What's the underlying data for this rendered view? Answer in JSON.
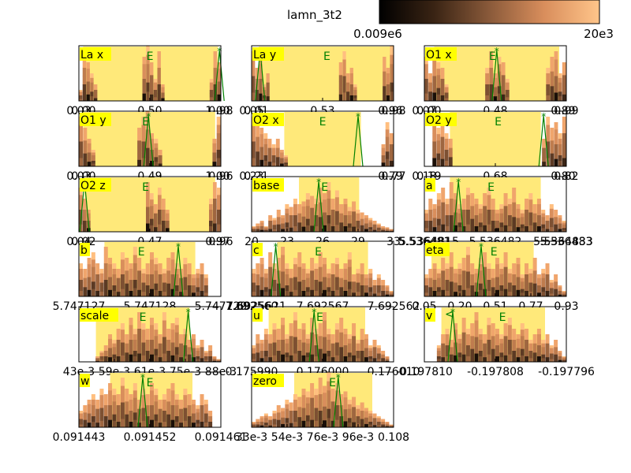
{
  "figure": {
    "title": "lamn_3t2",
    "colorbar": {
      "min_label": "0.009e6",
      "max_label": "20e3"
    }
  },
  "colors": {
    "band": "#ffe97a",
    "line": "#008000",
    "label_bg": "#ffff00",
    "frame": "#000000"
  },
  "chart_data": [
    {
      "name": "La x",
      "type": "bar",
      "ticks": [
        "0.03",
        "0.50",
        "0.98"
      ],
      "extra_ticks": [
        "0.00",
        "1.00"
      ],
      "band": [
        0.03,
        0.98
      ],
      "E": 0.5,
      "star": 0.99,
      "heights": [
        0.2,
        0.9,
        0.7,
        0.5,
        0.3,
        0,
        0,
        0,
        0,
        0,
        0,
        0,
        0,
        0,
        0,
        0,
        0,
        0.8,
        1.0,
        0.7,
        0.4,
        0.9,
        0.3,
        0,
        0,
        0,
        0,
        0,
        0,
        0,
        0,
        0,
        0,
        0,
        0,
        0.4,
        0.9,
        0.7
      ]
    },
    {
      "name": "La y",
      "type": "bar",
      "ticks": [
        "0.05",
        "0.53",
        "0.98"
      ],
      "extra_ticks": [
        "0.01",
        "0.96"
      ],
      "band": [
        0.05,
        0.98
      ],
      "E": 0.53,
      "star": 0.06,
      "heights": [
        0.9,
        0.6,
        0.8,
        0.3,
        0.5,
        0,
        0,
        0,
        0,
        0,
        0,
        0,
        0,
        0,
        0,
        0,
        0,
        0,
        0,
        0,
        0,
        0,
        0,
        0,
        0.7,
        0.9,
        0.5,
        0.6,
        0.3,
        0,
        0,
        0,
        0,
        0,
        0,
        0,
        0.8,
        0.6,
        1.0
      ]
    },
    {
      "name": "O1 x",
      "type": "bar",
      "ticks": [
        "0.07",
        "0.48",
        "0.99"
      ],
      "extra_ticks": [
        "0.00",
        "0.89"
      ],
      "band": [
        0.07,
        0.95
      ],
      "E": 0.48,
      "star": 0.51,
      "heights": [
        0.8,
        0.5,
        0.9,
        0.7,
        0.6,
        0.3,
        0,
        0,
        0,
        0,
        0,
        0,
        0,
        0,
        0,
        0.6,
        0.9,
        0.5,
        0.8,
        0.7,
        0.4,
        0,
        0,
        0,
        0,
        0,
        0,
        0,
        0,
        0,
        0.6,
        0.8,
        0.9,
        0.5,
        0.7
      ]
    },
    {
      "name": "O1 y",
      "type": "bar",
      "ticks": [
        "0.03",
        "0.49",
        "0.96"
      ],
      "extra_ticks": [
        "0.00",
        "1.00"
      ],
      "band": [
        0.03,
        0.96
      ],
      "E": 0.47,
      "star": 0.49,
      "heights": [
        0.9,
        0.7,
        0.5,
        0.3,
        0,
        0,
        0,
        0,
        0,
        0,
        0,
        0,
        0,
        0,
        0.7,
        0.9,
        1.0,
        0.6,
        0.5,
        0.3,
        0,
        0,
        0,
        0,
        0,
        0,
        0,
        0,
        0,
        0,
        0,
        0,
        0.5,
        0.9
      ]
    },
    {
      "name": "O2 x",
      "type": "bar",
      "ticks": [
        "0.23",
        "0.77"
      ],
      "extra_ticks": [
        "0.21",
        "0.79"
      ],
      "band": [
        0.23,
        0.77
      ],
      "E": 0.5,
      "star": 0.75,
      "heights": [
        0.9,
        0.8,
        0.7,
        0.6,
        0.5,
        0.4,
        0.5,
        0.3,
        0.2,
        0,
        0,
        0,
        0,
        0,
        0,
        0,
        0,
        0,
        0,
        0,
        0,
        0,
        0,
        0,
        0,
        0,
        0,
        0,
        0,
        0,
        0,
        0,
        0.4,
        0.8,
        0.6
      ]
    },
    {
      "name": "O2 y",
      "type": "bar",
      "ticks": [
        "0.18",
        "0.68",
        "0.82"
      ],
      "extra_ticks": [
        "0.19",
        "0.80"
      ],
      "band": [
        0.18,
        0.82
      ],
      "E": 0.52,
      "star": 0.84,
      "heights": [
        0,
        0,
        0.9,
        0.7,
        0.8,
        0.6,
        0.5,
        0,
        0,
        0,
        0,
        0,
        0,
        0,
        0,
        0,
        0,
        0,
        0,
        0,
        0,
        0,
        0,
        0,
        0,
        0,
        0,
        0,
        0,
        0.5,
        0.9,
        0.7,
        0.8,
        0.6,
        0.9
      ]
    },
    {
      "name": "O2 z",
      "type": "bar",
      "ticks": [
        "0.04",
        "0.47",
        "0.96"
      ],
      "extra_ticks": [
        "0.02",
        "0.97"
      ],
      "band": [
        0.04,
        0.96
      ],
      "E": 0.47,
      "star": 0.04,
      "heights": [
        0.8,
        0.6,
        0.4,
        0,
        0,
        0,
        0,
        0,
        0,
        0,
        0,
        0,
        0,
        0,
        0,
        0,
        0,
        0.9,
        0.7,
        0.5,
        0.8,
        0.6,
        0.4,
        0,
        0,
        0,
        0,
        0,
        0,
        0,
        0,
        0,
        0,
        0.6,
        0.9,
        0.8
      ]
    },
    {
      "name": "base",
      "type": "bar",
      "ticks": [
        "20",
        "23",
        "26",
        "29",
        "33"
      ],
      "band": [
        23.5,
        30.5
      ],
      "E": 26.5,
      "star": 25.8,
      "heights": [
        0.1,
        0.15,
        0.2,
        0.1,
        0.3,
        0.25,
        0.4,
        0.3,
        0.5,
        0.45,
        0.6,
        0.5,
        0.55,
        0.7,
        0.65,
        0.6,
        0.8,
        0.7,
        0.9,
        0.6,
        0.75,
        0.5,
        0.6,
        0.45,
        0.55,
        0.4,
        0.35,
        0.3,
        0.25,
        0.2,
        0.15,
        0.1,
        0.08,
        0.05
      ]
    },
    {
      "name": "a",
      "type": "bar",
      "ticks": [
        "5.536481",
        "5.536482",
        "5.536483"
      ],
      "extra_ticks": [
        "5.5364815",
        "5.5364833"
      ],
      "band": [
        0.18,
        0.82
      ],
      "E": 0.47,
      "star": 0.24,
      "heights": [
        0.4,
        0.6,
        0.5,
        0.7,
        0.8,
        0.6,
        0.9,
        0.7,
        0.5,
        0.6,
        0.8,
        0.7,
        0.6,
        0.5,
        0.7,
        0.8,
        0.6,
        0.4,
        0.5,
        0.7,
        0.6,
        0.8,
        0.5,
        0.4,
        0.6,
        0.7,
        0.5,
        0.6,
        0.4,
        0.3,
        0.5,
        0.4,
        0.3,
        0.2
      ]
    },
    {
      "name": "b",
      "type": "bar",
      "ticks": [
        "5.747127",
        "5.747128",
        "5.747129"
      ],
      "band": [
        0.18,
        0.82
      ],
      "E": 0.44,
      "star": 0.7,
      "heights": [
        0.6,
        0.5,
        0.7,
        0.8,
        0.6,
        0.5,
        0.9,
        0.7,
        0.6,
        0.5,
        0.8,
        0.7,
        0.6,
        0.9,
        0.7,
        0.5,
        0.6,
        0.8,
        0.7,
        0.6,
        0.5,
        0.7,
        0.8,
        0.6,
        0.5,
        0.7,
        0.6,
        0.4,
        0.5,
        0.6,
        0.4,
        0,
        0,
        0
      ]
    },
    {
      "name": "c",
      "type": "bar",
      "ticks": [
        "7.692560",
        "7.692567",
        "7.692562"
      ],
      "extra_ticks": [
        "7.6925621"
      ],
      "band": [
        0.18,
        0.82
      ],
      "E": 0.47,
      "star": 0.17,
      "heights": [
        0.5,
        0.6,
        0.7,
        0.5,
        0.8,
        0.6,
        0.7,
        0.9,
        0.6,
        0.5,
        0.7,
        0.8,
        0.6,
        0.5,
        0.7,
        0.6,
        0.8,
        0.7,
        0.5,
        0.6,
        0.7,
        0.5,
        0.6,
        0.8,
        0.4,
        0.5,
        0.6,
        0.4,
        0.5,
        0.3,
        0.4,
        0.3,
        0.2,
        0.1
      ]
    },
    {
      "name": "eta",
      "type": "bar",
      "ticks": [
        "0.05",
        "0.20",
        "0.51",
        "0.77",
        "0.93"
      ],
      "band": [
        0.05,
        0.77
      ],
      "E": 0.49,
      "star": 0.4,
      "heights": [
        0.4,
        0.5,
        0.6,
        0.5,
        0.7,
        0.6,
        0.8,
        0.5,
        0.6,
        0.7,
        0.9,
        0.6,
        0.5,
        0.7,
        0.8,
        0.6,
        0.5,
        0.7,
        0.6,
        0.8,
        0.5,
        0.6,
        0.7,
        0.4,
        0.6,
        0.5,
        0.7,
        0.4,
        0.5,
        0.6,
        0.3,
        0.4,
        0.2,
        0.1
      ]
    },
    {
      "name": "scale",
      "type": "bar",
      "ticks": [
        "43e-3",
        "59e-3",
        "61e-3",
        "75e-3",
        "88e-3"
      ],
      "band": [
        0.12,
        0.78
      ],
      "E": 0.45,
      "star": 0.77,
      "heights": [
        0,
        0,
        0,
        0,
        0.1,
        0.2,
        0.3,
        0.5,
        0.4,
        0.6,
        0.7,
        0.5,
        0.8,
        0.6,
        0.9,
        0.7,
        0.6,
        0.8,
        0.7,
        0.5,
        0.9,
        0.6,
        0.7,
        0.8,
        0.5,
        0.6,
        0.4,
        0.5,
        0.3,
        0.4,
        0.2,
        0.3,
        0.1,
        0.05
      ]
    },
    {
      "name": "u",
      "type": "bar",
      "ticks": [
        "0.175990",
        "0.176000",
        "0.176010"
      ],
      "band": [
        0.12,
        0.8
      ],
      "E": 0.48,
      "star": 0.44,
      "heights": [
        0.3,
        0.5,
        0.4,
        0.6,
        0.5,
        0.7,
        0.6,
        0.8,
        0.5,
        0.7,
        0.9,
        0.6,
        0.7,
        0.5,
        0.8,
        0.6,
        0.7,
        0.9,
        0.6,
        0.5,
        0.7,
        0.8,
        0.6,
        0.5,
        0.7,
        0.4,
        0.6,
        0.5,
        0.3,
        0.4,
        0.3,
        0.2,
        0.1,
        0
      ]
    },
    {
      "name": "v",
      "type": "bar",
      "ticks": [
        "-0.197810",
        "-0.197808",
        "-0.197796"
      ],
      "band": [
        0.12,
        0.85
      ],
      "E": 0.55,
      "star": 0.2,
      "left_arrow": "<",
      "heights": [
        0,
        0,
        0,
        0.3,
        0.5,
        0.6,
        0.4,
        0.7,
        0.5,
        0.8,
        0.6,
        0.7,
        0.9,
        0.6,
        0.5,
        0.8,
        0.7,
        0.6,
        0.5,
        0.7,
        0.8,
        0.6,
        0.5,
        0.7,
        0.6,
        0.4,
        0.5,
        0.6,
        0.4,
        0.5,
        0.3,
        0.4,
        0.2,
        0.1
      ]
    },
    {
      "name": "w",
      "type": "bar",
      "ticks": [
        "0.091443",
        "0.091452",
        "0.091461"
      ],
      "band": [
        0.22,
        0.8
      ],
      "E": 0.5,
      "star": 0.45,
      "heights": [
        0.3,
        0.4,
        0.5,
        0.6,
        0.5,
        0.7,
        0.6,
        0.8,
        0.7,
        0.6,
        0.9,
        0.7,
        0.6,
        0.8,
        0.5,
        0.7,
        0.6,
        0.8,
        0.7,
        0.5,
        0.6,
        0.7,
        0.8,
        0.6,
        0.5,
        0.7,
        0.6,
        0.5,
        0.4,
        0.6,
        0.5,
        0.3,
        0,
        0
      ]
    },
    {
      "name": "zero",
      "type": "bar",
      "ticks": [
        "33e-3",
        "54e-3",
        "76e-3",
        "96e-3",
        "0.108"
      ],
      "band": [
        0.3,
        0.85
      ],
      "E": 0.57,
      "star": 0.61,
      "heights": [
        0.1,
        0.15,
        0.2,
        0.25,
        0.2,
        0.3,
        0.4,
        0.35,
        0.5,
        0.45,
        0.6,
        0.55,
        0.7,
        0.65,
        0.8,
        0.7,
        0.9,
        0.75,
        1.0,
        0.7,
        0.8,
        0.6,
        0.65,
        0.5,
        0.55,
        0.4,
        0.45,
        0.35,
        0.3,
        0.25,
        0.2,
        0.15,
        0.1,
        0.05
      ]
    }
  ]
}
